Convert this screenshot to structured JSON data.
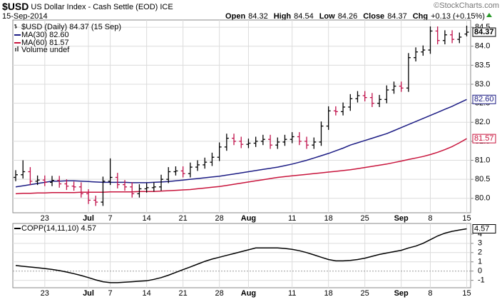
{
  "chart_data": {
    "type": "ohlc",
    "symbol": "$USD",
    "title": "US Dollar Index - Cash Settle (EOD) ICE",
    "date": "15-Sep-2014",
    "source": "©StockCharts.com",
    "quote": [
      {
        "label": "Open",
        "value": "84.32"
      },
      {
        "label": "High",
        "value": "84.54"
      },
      {
        "label": "Low",
        "value": "84.26"
      },
      {
        "label": "Close",
        "value": "84.37"
      },
      {
        "label": "Chg",
        "value": "+0.13 (+0.15%)"
      }
    ],
    "legend_title": "$USD (Daily) 84.37 (15 Sep)",
    "volume_note": "Volume undef",
    "categories": [
      null,
      null,
      null,
      null,
      "23",
      null,
      null,
      null,
      null,
      null,
      "Jul",
      null,
      null,
      "7",
      null,
      null,
      null,
      null,
      "14",
      null,
      null,
      null,
      null,
      "21",
      null,
      null,
      null,
      null,
      "28",
      null,
      null,
      null,
      "Aug",
      null,
      null,
      null,
      null,
      null,
      "11",
      null,
      null,
      null,
      null,
      "18",
      null,
      null,
      null,
      null,
      "25",
      null,
      null,
      null,
      null,
      "Sep",
      null,
      null,
      null,
      "8",
      null,
      null,
      null,
      null,
      "15"
    ],
    "ylim": [
      79.62,
      84.69
    ],
    "yticks": [
      {
        "value": 80,
        "label": "80.0"
      },
      {
        "value": 80.5,
        "label": "80.5"
      },
      {
        "value": 81,
        "label": "81.0"
      },
      {
        "value": 81.5,
        "label": "81.5"
      },
      {
        "value": 82,
        "label": "82.0"
      },
      {
        "value": 82.5,
        "label": "82.5"
      },
      {
        "value": 83,
        "label": "83.0"
      },
      {
        "value": 83.5,
        "label": "83.5"
      },
      {
        "value": 84,
        "label": "84.0"
      },
      {
        "value": 84.5,
        "label": "84.5"
      }
    ],
    "grid": true,
    "up_color": "#000000",
    "down_color": "#c0104a",
    "ohlc": {
      "open": [
        80.55,
        80.62,
        80.7,
        80.45,
        80.48,
        80.42,
        80.47,
        80.38,
        80.32,
        80.3,
        80.12,
        79.95,
        79.9,
        80.45,
        80.55,
        80.36,
        80.3,
        80.12,
        80.25,
        80.28,
        80.3,
        80.5,
        80.7,
        80.72,
        80.65,
        80.82,
        80.88,
        80.95,
        81.08,
        81.35,
        81.58,
        81.5,
        81.42,
        81.45,
        81.5,
        81.55,
        81.4,
        81.48,
        81.55,
        81.62,
        81.5,
        81.4,
        81.48,
        81.9,
        82.3,
        82.28,
        82.4,
        82.62,
        82.7,
        82.65,
        82.5,
        82.6,
        82.85,
        82.95,
        82.9,
        83.7,
        83.85,
        83.9,
        84.4,
        84.15,
        84.3,
        84.18,
        84.32
      ],
      "high": [
        80.74,
        81.0,
        80.82,
        80.6,
        80.6,
        80.59,
        80.59,
        80.5,
        80.44,
        80.42,
        80.24,
        80.07,
        80.57,
        81.05,
        80.67,
        80.48,
        80.42,
        80.37,
        80.4,
        80.42,
        80.62,
        80.82,
        80.84,
        80.84,
        80.94,
        81.0,
        81.07,
        81.2,
        81.47,
        81.7,
        81.7,
        81.62,
        81.57,
        81.62,
        81.67,
        81.67,
        81.6,
        81.67,
        81.74,
        81.74,
        81.62,
        81.6,
        82.02,
        82.42,
        82.42,
        82.52,
        82.74,
        82.82,
        82.82,
        82.77,
        82.72,
        82.97,
        83.07,
        83.07,
        83.82,
        83.97,
        84.02,
        84.52,
        84.52,
        84.42,
        84.42,
        84.36,
        84.54
      ],
      "low": [
        80.45,
        80.52,
        80.35,
        80.35,
        80.32,
        80.32,
        80.28,
        80.22,
        80.2,
        80.02,
        79.85,
        79.8,
        79.8,
        80.35,
        80.26,
        80.2,
        80.02,
        80.02,
        80.15,
        80.18,
        80.2,
        80.4,
        80.6,
        80.55,
        80.55,
        80.72,
        80.78,
        80.85,
        80.98,
        81.25,
        81.4,
        81.32,
        81.32,
        81.35,
        81.4,
        81.3,
        81.3,
        81.38,
        81.45,
        81.4,
        81.3,
        81.3,
        81.38,
        81.8,
        82.18,
        82.18,
        82.3,
        82.52,
        82.55,
        82.4,
        82.4,
        82.5,
        82.75,
        82.8,
        82.8,
        83.6,
        83.75,
        83.8,
        84.05,
        84.05,
        84.08,
        84.08,
        84.26
      ],
      "close": [
        80.62,
        80.7,
        80.45,
        80.48,
        80.42,
        80.47,
        80.38,
        80.32,
        80.3,
        80.12,
        79.95,
        79.9,
        80.45,
        80.55,
        80.36,
        80.3,
        80.12,
        80.25,
        80.28,
        80.3,
        80.5,
        80.7,
        80.72,
        80.65,
        80.82,
        80.88,
        80.95,
        81.08,
        81.35,
        81.58,
        81.5,
        81.42,
        81.45,
        81.5,
        81.55,
        81.4,
        81.48,
        81.55,
        81.62,
        81.5,
        81.4,
        81.48,
        81.9,
        82.3,
        82.28,
        82.4,
        82.62,
        82.7,
        82.65,
        82.5,
        82.6,
        82.85,
        82.95,
        82.9,
        83.7,
        83.85,
        83.9,
        84.4,
        84.15,
        84.3,
        84.18,
        84.24,
        84.37
      ],
      "last_label": "84.37"
    },
    "series": [
      {
        "name": "MA(30) 82.60",
        "color": "#1c1c84",
        "last_label": "82.60",
        "values": [
          80.3,
          80.33,
          80.36,
          80.39,
          80.42,
          80.45,
          80.45,
          80.46,
          80.46,
          80.45,
          80.44,
          80.43,
          80.42,
          80.42,
          80.42,
          80.42,
          80.41,
          80.41,
          80.41,
          80.42,
          80.43,
          80.44,
          80.46,
          80.48,
          80.5,
          80.52,
          80.54,
          80.56,
          80.58,
          80.61,
          80.64,
          80.67,
          80.7,
          80.73,
          80.76,
          80.79,
          80.82,
          80.86,
          80.9,
          80.95,
          81.0,
          81.06,
          81.12,
          81.18,
          81.25,
          81.32,
          81.4,
          81.46,
          81.52,
          81.58,
          81.64,
          81.7,
          81.78,
          81.86,
          81.94,
          82.02,
          82.1,
          82.18,
          82.26,
          82.34,
          82.42,
          82.51,
          82.6
        ]
      },
      {
        "name": "MA(60) 81.57",
        "color": "#c8143c",
        "last_label": "81.57",
        "values": [
          80.12,
          80.13,
          80.13,
          80.14,
          80.14,
          80.15,
          80.15,
          80.15,
          80.15,
          80.16,
          80.16,
          80.16,
          80.16,
          80.17,
          80.17,
          80.17,
          80.17,
          80.18,
          80.18,
          80.18,
          80.19,
          80.2,
          80.21,
          80.22,
          80.23,
          80.25,
          80.27,
          80.29,
          80.31,
          80.34,
          80.37,
          80.4,
          80.43,
          80.46,
          80.49,
          80.52,
          80.55,
          80.57,
          80.59,
          80.61,
          80.63,
          80.65,
          80.67,
          80.69,
          80.71,
          80.73,
          80.75,
          80.78,
          80.81,
          80.84,
          80.87,
          80.9,
          80.94,
          80.98,
          81.02,
          81.06,
          81.1,
          81.15,
          81.21,
          81.28,
          81.36,
          81.46,
          81.57
        ]
      }
    ],
    "indicator": {
      "type": "line",
      "name": "COPP(14,11,10) 4.57",
      "color": "#000000",
      "last_label": "4.57",
      "ylim": [
        -1.8,
        5.15
      ],
      "yticks": [
        4,
        3,
        2,
        1,
        0,
        -1
      ],
      "values": [
        0.6,
        0.52,
        0.44,
        0.36,
        0.28,
        0.18,
        0.05,
        -0.1,
        -0.28,
        -0.48,
        -0.7,
        -0.95,
        -1.15,
        -1.25,
        -1.25,
        -1.2,
        -1.15,
        -1.1,
        -1.05,
        -0.9,
        -0.7,
        -0.45,
        -0.15,
        0.15,
        0.45,
        0.75,
        1.05,
        1.3,
        1.5,
        1.7,
        1.9,
        2.1,
        2.3,
        2.5,
        2.5,
        2.5,
        2.5,
        2.45,
        2.35,
        2.2,
        2.0,
        1.75,
        1.5,
        1.25,
        1.1,
        1.1,
        1.15,
        1.25,
        1.4,
        1.6,
        1.8,
        1.95,
        2.1,
        2.25,
        2.5,
        2.7,
        3.0,
        3.4,
        3.8,
        4.1,
        4.3,
        4.45,
        4.57
      ]
    }
  }
}
